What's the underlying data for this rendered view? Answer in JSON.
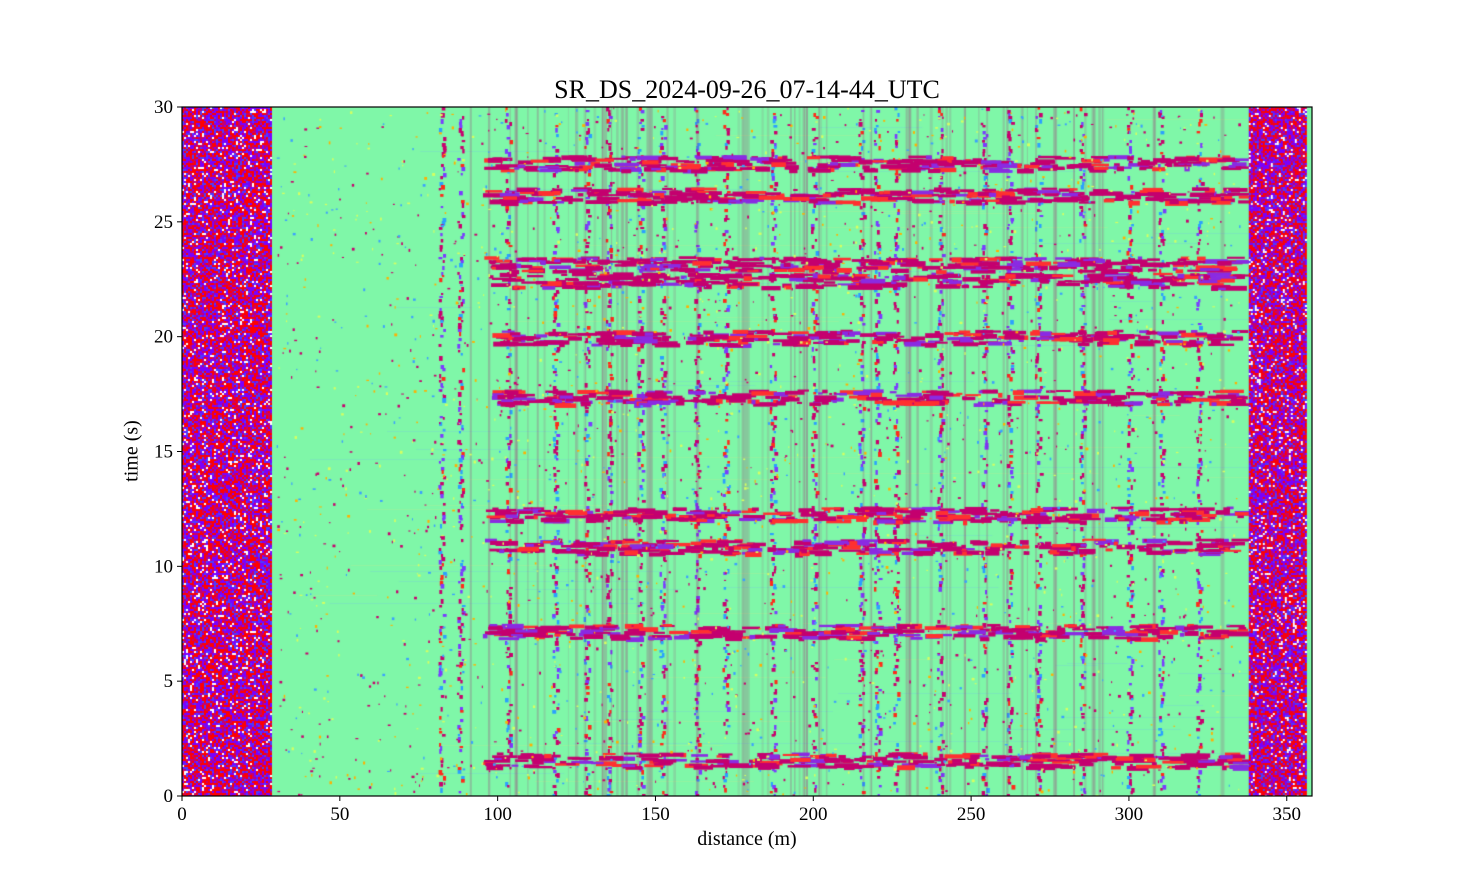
{
  "chart_data": {
    "type": "heatmap",
    "title": "SR_DS_2024-09-26_07-14-44_UTC",
    "xlabel": "distance (m)",
    "ylabel": "time (s)",
    "xlim": [
      0,
      358
    ],
    "ylim": [
      0,
      30
    ],
    "xticks": [
      0,
      50,
      100,
      150,
      200,
      250,
      300,
      350
    ],
    "yticks": [
      0,
      5,
      10,
      15,
      20,
      25,
      30
    ],
    "colormap": "rainbow",
    "background_color": "#7ff7a8",
    "noisy_columns": [
      [
        0,
        28
      ],
      [
        338,
        356
      ]
    ],
    "horizontal_events_s": [
      1.6,
      7.2,
      10.9,
      12.3,
      17.4,
      20.0,
      22.5,
      23.2,
      26.2,
      27.6
    ],
    "vertical_traces_m": [
      82,
      88,
      103,
      118,
      128,
      135,
      145,
      152,
      163,
      172,
      187,
      200,
      215,
      220,
      226,
      240,
      254,
      262,
      271,
      285,
      300,
      310,
      322
    ]
  }
}
